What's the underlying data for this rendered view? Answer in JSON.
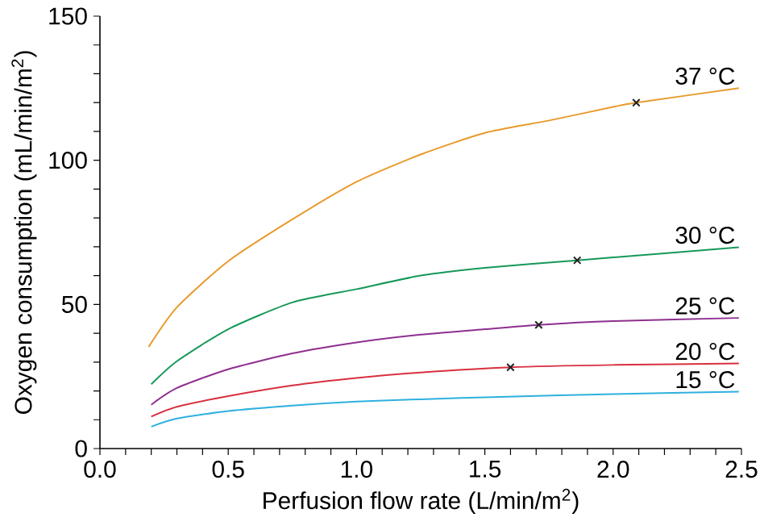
{
  "chart_data": {
    "type": "line",
    "xlabel": "Perfusion flow rate (L/min/m$^{2}$)",
    "ylabel": "Oxygen consumption (mL/min/m$^{2}$)",
    "xlim": [
      0,
      2.5
    ],
    "ylim": [
      0,
      150
    ],
    "xticks": [
      {
        "value": 0,
        "label": "0.0"
      },
      {
        "value": 0.1,
        "label": null
      },
      {
        "value": 0.2,
        "label": null
      },
      {
        "value": 0.3,
        "label": null
      },
      {
        "value": 0.4,
        "label": null
      },
      {
        "value": 0.5,
        "label": "0.5"
      },
      {
        "value": 0.6,
        "label": null
      },
      {
        "value": 0.7,
        "label": null
      },
      {
        "value": 0.8,
        "label": null
      },
      {
        "value": 0.9,
        "label": null
      },
      {
        "value": 1.0,
        "label": "1.0"
      },
      {
        "value": 1.1,
        "label": null
      },
      {
        "value": 1.2,
        "label": null
      },
      {
        "value": 1.3,
        "label": null
      },
      {
        "value": 1.4,
        "label": null
      },
      {
        "value": 1.5,
        "label": "1.5"
      },
      {
        "value": 1.6,
        "label": null
      },
      {
        "value": 1.7,
        "label": null
      },
      {
        "value": 1.8,
        "label": null
      },
      {
        "value": 1.9,
        "label": null
      },
      {
        "value": 2.0,
        "label": "2.0"
      },
      {
        "value": 2.1,
        "label": null
      },
      {
        "value": 2.2,
        "label": null
      },
      {
        "value": 2.3,
        "label": null
      },
      {
        "value": 2.4,
        "label": null
      },
      {
        "value": 2.5,
        "label": "2.5"
      }
    ],
    "yticks": [
      0,
      {
        "value": 10,
        "label": null
      },
      {
        "value": 20,
        "label": null
      },
      {
        "value": 30,
        "label": null
      },
      {
        "value": 40,
        "label": null
      },
      50,
      {
        "value": 60,
        "label": null
      },
      {
        "value": 70,
        "label": null
      },
      {
        "value": 80,
        "label": null
      },
      {
        "value": 90,
        "label": null
      },
      100,
      {
        "value": 110,
        "label": null
      },
      {
        "value": 120,
        "label": null
      },
      {
        "value": 130,
        "label": null
      },
      {
        "value": 140,
        "label": null
      },
      150
    ],
    "grid": false,
    "marker": "none",
    "line_style": "solid",
    "series": [
      {
        "name": "37 °C",
        "color": "#e89a2c",
        "x": [
          0.19,
          0.3,
          0.5,
          0.75,
          1.0,
          1.25,
          1.5,
          1.75,
          2.0,
          2.09,
          2.49
        ],
        "values": [
          35.3,
          49,
          65,
          79.5,
          92.5,
          102,
          109.5,
          113.8,
          118.5,
          120,
          125
        ]
      },
      {
        "name": "30 °C",
        "color": "#16985a",
        "x": [
          0.2,
          0.3,
          0.5,
          0.75,
          1.0,
          1.25,
          1.5,
          1.86,
          2.0,
          2.49
        ],
        "values": [
          22.3,
          30.3,
          41.4,
          50.7,
          55.3,
          60,
          62.7,
          65.3,
          66.3,
          69.8
        ]
      },
      {
        "name": "25 °C",
        "color": "#8e2f8f",
        "x": [
          0.2,
          0.3,
          0.5,
          0.75,
          1.0,
          1.25,
          1.5,
          1.71,
          2.0,
          2.49
        ],
        "values": [
          15.2,
          21,
          27.5,
          33,
          36.8,
          39.5,
          41.4,
          42.9,
          44.2,
          45.3
        ]
      },
      {
        "name": "20 °C",
        "color": "#d8303f",
        "x": [
          0.2,
          0.3,
          0.5,
          0.75,
          1.0,
          1.25,
          1.6,
          2.0,
          2.49
        ],
        "values": [
          11.1,
          14.5,
          18.2,
          21.9,
          24.5,
          26.4,
          28.2,
          29,
          29.5
        ]
      },
      {
        "name": "15 °C",
        "color": "#2fb0df",
        "x": [
          0.2,
          0.3,
          0.5,
          0.75,
          1.0,
          1.25,
          1.5,
          2.0,
          2.49
        ],
        "values": [
          7.6,
          10.4,
          13,
          14.9,
          16.3,
          17.1,
          17.8,
          18.9,
          19.7
        ]
      },
      {
        "type": "scatter",
        "marker": "cross",
        "color": "#222222",
        "x": [
          2.09,
          1.86,
          1.71,
          1.6
        ],
        "values": [
          120,
          65.3,
          42.9,
          28.2
        ]
      }
    ]
  }
}
